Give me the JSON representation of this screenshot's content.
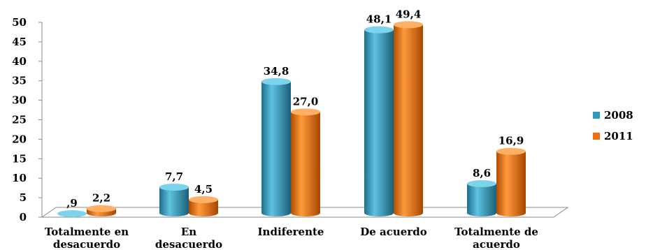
{
  "chart_data": {
    "type": "bar",
    "ylim": [
      0,
      50
    ],
    "yticks": [
      "0",
      "5",
      "10",
      "15",
      "20",
      "25",
      "30",
      "35",
      "40",
      "45",
      "50"
    ],
    "categories": [
      [
        "Totalmente en",
        "desacuerdo"
      ],
      [
        "En",
        "desacuerdo"
      ],
      [
        "Indiferente"
      ],
      [
        "De acuerdo"
      ],
      [
        "Totalmente de",
        "acuerdo"
      ]
    ],
    "series": [
      {
        "name": "2008",
        "color": "#2E9BBE",
        "values": [
          0.9,
          7.7,
          34.8,
          48.1,
          8.6
        ],
        "labels": [
          ",9",
          "7,7",
          "34,8",
          "48,1",
          "8,6"
        ]
      },
      {
        "name": "2011",
        "color": "#F07010",
        "values": [
          2.2,
          4.5,
          27.0,
          49.4,
          16.9
        ],
        "labels": [
          "2,2",
          "4,5",
          "27,0",
          "49,4",
          "16,9"
        ]
      }
    ],
    "legend_position": "right",
    "style": "3d-cylinder"
  }
}
